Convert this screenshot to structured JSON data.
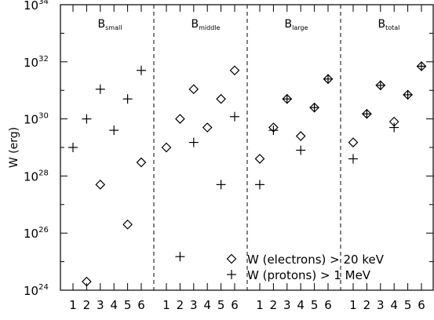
{
  "chart_data": {
    "type": "scatter",
    "ylabel": "W (erg)",
    "yscale": "log",
    "ylim": [
      1e+24,
      1e+34
    ],
    "y_ticks": [
      {
        "value": 1e+24,
        "base": "10",
        "exp": "24"
      },
      {
        "value": 1e+26,
        "base": "10",
        "exp": "26"
      },
      {
        "value": 1e+28,
        "base": "10",
        "exp": "28"
      },
      {
        "value": 1e+30,
        "base": "10",
        "exp": "30"
      },
      {
        "value": 1e+32,
        "base": "10",
        "exp": "32"
      },
      {
        "value": 1e+34,
        "base": "10",
        "exp": "34"
      }
    ],
    "x_tick_labels": [
      "1",
      "2",
      "3",
      "4",
      "5",
      "6"
    ],
    "legend": {
      "placement": "bottom-right",
      "entries": [
        {
          "marker": "diamond",
          "text": "W (electrons) > 20 keV"
        },
        {
          "marker": "plus",
          "text": "W (protons) > 1 MeV"
        }
      ]
    },
    "series_colors": {
      "electrons": "#000000",
      "protons": "#000000"
    },
    "panels": [
      {
        "label": "B",
        "sub": "small",
        "electrons": [
          {
            "x": 2,
            "y": 2e+24
          },
          {
            "x": 3,
            "y": 5e+27
          },
          {
            "x": 5,
            "y": 2e+26
          },
          {
            "x": 6,
            "y": 3e+28
          }
        ],
        "protons": [
          {
            "x": 1,
            "y": 1e+29
          },
          {
            "x": 2,
            "y": 1e+30
          },
          {
            "x": 3,
            "y": 1.1e+31
          },
          {
            "x": 4,
            "y": 4e+29
          },
          {
            "x": 5,
            "y": 5e+30
          },
          {
            "x": 6,
            "y": 5e+31
          }
        ]
      },
      {
        "label": "B",
        "sub": "middle",
        "electrons": [
          {
            "x": 1,
            "y": 1e+29
          },
          {
            "x": 2,
            "y": 1e+30
          },
          {
            "x": 3,
            "y": 1.1e+31
          },
          {
            "x": 4,
            "y": 5e+29
          },
          {
            "x": 5,
            "y": 5e+30
          },
          {
            "x": 6,
            "y": 5e+31
          }
        ],
        "protons": [
          {
            "x": 2,
            "y": 1.5e+25
          },
          {
            "x": 3,
            "y": 1.5e+29
          },
          {
            "x": 5,
            "y": 5e+27
          },
          {
            "x": 6,
            "y": 1.2e+30
          }
        ]
      },
      {
        "label": "B",
        "sub": "large",
        "electrons": [
          {
            "x": 1,
            "y": 4e+28
          },
          {
            "x": 2,
            "y": 5e+29
          },
          {
            "x": 3,
            "y": 5e+30
          },
          {
            "x": 4,
            "y": 2.5e+29
          },
          {
            "x": 5,
            "y": 2.5e+30
          },
          {
            "x": 6,
            "y": 2.5e+31
          }
        ],
        "protons": [
          {
            "x": 1,
            "y": 5e+27
          },
          {
            "x": 2,
            "y": 4e+29
          },
          {
            "x": 3,
            "y": 5e+30
          },
          {
            "x": 4,
            "y": 8e+28
          },
          {
            "x": 5,
            "y": 2.5e+30
          },
          {
            "x": 6,
            "y": 2.5e+31
          }
        ]
      },
      {
        "label": "B",
        "sub": "total",
        "electrons": [
          {
            "x": 1,
            "y": 1.5e+29
          },
          {
            "x": 2,
            "y": 1.5e+30
          },
          {
            "x": 3,
            "y": 1.5e+31
          },
          {
            "x": 4,
            "y": 8e+29
          },
          {
            "x": 5,
            "y": 7e+30
          },
          {
            "x": 6,
            "y": 7e+31
          }
        ],
        "protons": [
          {
            "x": 1,
            "y": 4e+28
          },
          {
            "x": 2,
            "y": 1.5e+30
          },
          {
            "x": 3,
            "y": 1.5e+31
          },
          {
            "x": 4,
            "y": 5e+29
          },
          {
            "x": 5,
            "y": 7e+30
          },
          {
            "x": 6,
            "y": 7e+31
          }
        ]
      }
    ]
  }
}
